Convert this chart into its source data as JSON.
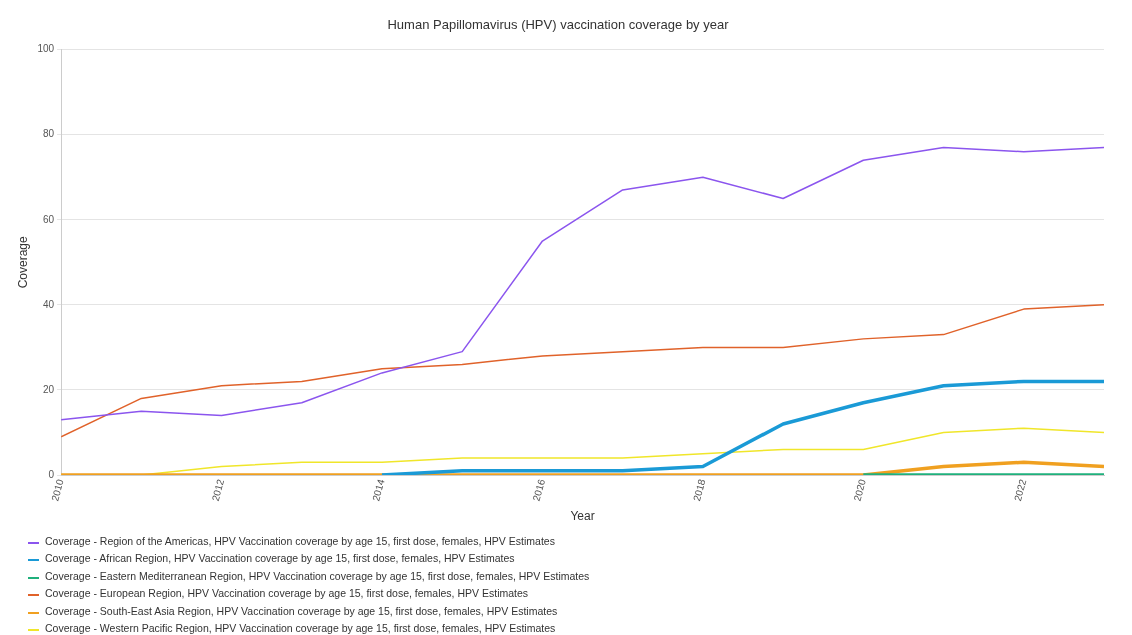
{
  "chart_data": {
    "type": "line",
    "title": "Human Papillomavirus (HPV) vaccination coverage by year",
    "xlabel": "Year",
    "ylabel": "Coverage",
    "x": [
      2010,
      2011,
      2012,
      2013,
      2014,
      2015,
      2016,
      2017,
      2018,
      2019,
      2020,
      2021,
      2022,
      2023
    ],
    "xlim": [
      2010,
      2023
    ],
    "xticks": [
      2010,
      2012,
      2014,
      2016,
      2018,
      2020,
      2022
    ],
    "ylim": [
      0,
      100
    ],
    "yticks": [
      0,
      20,
      40,
      60,
      80,
      100
    ],
    "grid": "y",
    "legend": "bottom",
    "marker": "none",
    "series": [
      {
        "name": "Coverage - Region of the Americas, HPV Vaccination coverage by age 15, first dose, females, HPV Estimates",
        "color": "#8b55ee",
        "values": [
          13,
          15,
          14,
          17,
          24,
          29,
          55,
          67,
          70,
          65,
          74,
          77,
          76,
          77
        ]
      },
      {
        "name": "Coverage - African Region, HPV Vaccination coverage by age 15, first dose, females, HPV Estimates",
        "color": "#1a9ad6",
        "values": [
          null,
          null,
          null,
          null,
          0,
          1,
          1,
          1,
          2,
          12,
          17,
          21,
          22,
          22
        ]
      },
      {
        "name": "Coverage - Eastern Mediterranean Region, HPV Vaccination coverage by age 15, first dose, females, HPV Estimates",
        "color": "#1fb07c",
        "values": [
          null,
          null,
          null,
          null,
          null,
          null,
          null,
          null,
          null,
          null,
          0,
          0,
          0,
          0
        ]
      },
      {
        "name": "Coverage - European Region, HPV Vaccination coverage by age 15, first dose, females, HPV Estimates",
        "color": "#e0622a",
        "values": [
          9,
          18,
          21,
          22,
          25,
          26,
          28,
          29,
          30,
          30,
          32,
          33,
          39,
          40
        ]
      },
      {
        "name": "Coverage - South-East Asia Region, HPV Vaccination coverage by age 15, first dose, females, HPV Estimates",
        "color": "#f0a020",
        "values": [
          0,
          0,
          0,
          0,
          0,
          0,
          0,
          0,
          0,
          0,
          0,
          2,
          3,
          2
        ]
      },
      {
        "name": "Coverage - Western Pacific Region, HPV Vaccination coverage by age 15, first dose, females, HPV Estimates",
        "color": "#f0e62a",
        "values": [
          0,
          0,
          2,
          3,
          3,
          4,
          4,
          4,
          5,
          6,
          6,
          10,
          11,
          10
        ]
      }
    ]
  }
}
